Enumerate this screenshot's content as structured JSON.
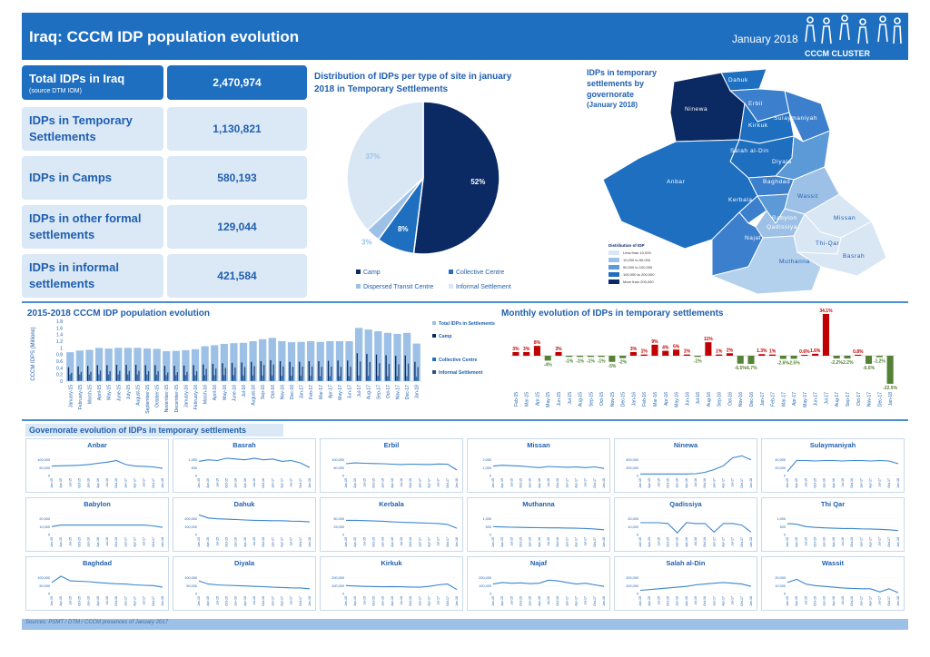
{
  "header": {
    "title": "Iraq: CCCM IDP population evolution",
    "date": "January 2018",
    "logo_text": "CCCM CLUSTER"
  },
  "kpis": [
    {
      "label": "Total IDPs in Iraq",
      "sub": "(source DTM IOM)",
      "value": "2,470,974"
    },
    {
      "label": "IDPs in Temporary Settlements",
      "sub": "",
      "value": "1,130,821"
    },
    {
      "label": "IDPs in Camps",
      "sub": "",
      "value": "580,193"
    },
    {
      "label": "IDPs in other formal settlements",
      "sub": "",
      "value": "129,044"
    },
    {
      "label": "IDPs in informal settlements",
      "sub": "",
      "value": "421,584"
    }
  ],
  "colors": {
    "brand": "#1f6fc0",
    "dark_navy": "#0b2a63",
    "mid_blue": "#1f6fc0",
    "light_blue": "#9dc1e6",
    "pale_blue": "#d9e6f4",
    "red": "#c00000",
    "green": "#548235"
  },
  "sections": {
    "pie_title_line1": "Distribution of IDPs per type of site in january",
    "pie_title_line2": "2018 in Temporary Settlements",
    "map_title_lines": [
      "IDPs in temporary",
      "settlements by",
      "governorate",
      "(January 2018)"
    ],
    "evo_title": "2015-2018 CCCM IDP population evolution",
    "monthly_title": "Monthly evolution of IDPs in temporary settlements",
    "gov_title": "Governorate evolution of IDPs in temporary settlements",
    "footer": "Sources: PSMT / DTM / CCCM presences of January 2017"
  },
  "map": {
    "legend_title": "Distribution of IDP",
    "legend_items": [
      "Less than 10,000",
      "10,000 to 50,000",
      "50,000 to 100,000",
      "100,000 to 200,000",
      "More than 200,000"
    ],
    "regions": [
      "Dahuk",
      "Ninewa",
      "Erbil",
      "Sulaymaniyah",
      "Kirkuk",
      "Salah al-Din",
      "Diyala",
      "Baghdad",
      "Anbar",
      "Wassit",
      "Kerbala",
      "Babylon",
      "Qadissiya",
      "Missan",
      "Thi-Qar",
      "Najaf",
      "Muthanna",
      "Basrah"
    ]
  },
  "chart_data": [
    {
      "type": "pie",
      "title": "Distribution of IDPs per type of site in january 2018 in Temporary Settlements",
      "categories": [
        "Camp",
        "Collective Centre",
        "Dispersed Transit Centre",
        "Informal Settlement"
      ],
      "values": [
        52,
        8,
        3,
        37
      ],
      "labels": [
        "52%",
        "8%",
        "3%",
        "37%"
      ],
      "legend": "bottom"
    },
    {
      "type": "bar",
      "title": "2015-2018 CCCM IDP population evolution",
      "ylabel": "CCCM IDPS (Millions)",
      "ylim": [
        0,
        1.8
      ],
      "yticks": [
        "0",
        "0.2",
        "0.4",
        "0.6",
        "0.8",
        "1",
        "1.2",
        "1.4",
        "1.6",
        "1.8"
      ],
      "categories": [
        "January-15",
        "February-15",
        "March-15",
        "April-15",
        "May-15",
        "June-15",
        "July-15",
        "August-15",
        "September-15",
        "October-15",
        "November-15",
        "December-15",
        "January-16",
        "February-16",
        "March-16",
        "April-16",
        "May-16",
        "June-16",
        "Jul-16",
        "August-16",
        "Sep-16",
        "Oct-16",
        "Nov-16",
        "Dec-16",
        "Jan-17",
        "Feb-17",
        "Mar-17",
        "Apr-17",
        "May-17",
        "Jun-17",
        "Jul-17",
        "Aug-17",
        "Sep-17",
        "Oct-17",
        "Nov-17",
        "Dec-17",
        "Jan-18"
      ],
      "series": [
        {
          "name": "Total IDPs in Settlements",
          "values": [
            0.87,
            0.92,
            0.94,
            1.0,
            0.98,
            1.0,
            1.0,
            1.0,
            0.98,
            0.97,
            0.9,
            0.91,
            0.93,
            0.96,
            1.05,
            1.08,
            1.12,
            1.14,
            1.15,
            1.2,
            1.26,
            1.3,
            1.2,
            1.17,
            1.18,
            1.2,
            1.18,
            1.2,
            1.2,
            1.2,
            1.6,
            1.55,
            1.5,
            1.45,
            1.42,
            1.45,
            1.13
          ]
        },
        {
          "name": "Camp",
          "values": [
            0.42,
            0.44,
            0.46,
            0.48,
            0.48,
            0.49,
            0.49,
            0.49,
            0.48,
            0.48,
            0.46,
            0.46,
            0.47,
            0.48,
            0.5,
            0.52,
            0.54,
            0.55,
            0.56,
            0.58,
            0.6,
            0.63,
            0.6,
            0.58,
            0.58,
            0.6,
            0.6,
            0.61,
            0.62,
            0.62,
            0.84,
            0.82,
            0.8,
            0.78,
            0.76,
            0.77,
            0.58
          ]
        },
        {
          "name": "Collective Centre",
          "values": [
            0.2,
            0.2,
            0.2,
            0.2,
            0.2,
            0.2,
            0.2,
            0.2,
            0.2,
            0.19,
            0.18,
            0.18,
            0.18,
            0.18,
            0.18,
            0.18,
            0.18,
            0.18,
            0.17,
            0.17,
            0.17,
            0.17,
            0.16,
            0.16,
            0.16,
            0.16,
            0.15,
            0.15,
            0.15,
            0.15,
            0.17,
            0.16,
            0.16,
            0.15,
            0.15,
            0.15,
            0.13
          ]
        },
        {
          "name": "Informal Settlement",
          "values": [
            0.25,
            0.28,
            0.28,
            0.32,
            0.3,
            0.31,
            0.31,
            0.31,
            0.3,
            0.3,
            0.26,
            0.27,
            0.28,
            0.3,
            0.37,
            0.38,
            0.4,
            0.41,
            0.42,
            0.45,
            0.49,
            0.5,
            0.44,
            0.43,
            0.44,
            0.44,
            0.43,
            0.44,
            0.43,
            0.43,
            0.59,
            0.57,
            0.54,
            0.52,
            0.51,
            0.53,
            0.42
          ]
        }
      ],
      "legend": "right"
    },
    {
      "type": "bar",
      "title": "Monthly evolution of IDPs in temporary settlements",
      "categories": [
        "Feb-15",
        "Mar-15",
        "Apr-15",
        "May-15",
        "Jun-15",
        "Jul-15",
        "Aug-15",
        "Sep-15",
        "Oct-15",
        "Nov-15",
        "Dec-15",
        "Jan-16",
        "Feb-16",
        "Mar-16",
        "Apr-16",
        "May-16",
        "Jun-16",
        "Jul-16",
        "Aug-16",
        "Sep-16",
        "Oct-16",
        "Nov-16",
        "Dec-16",
        "Jan-17",
        "Feb-17",
        "Mar-17",
        "Apr-17",
        "May-17",
        "Jun-17",
        "Jul-17",
        "Aug-17",
        "Sep-17",
        "Oct-17",
        "Nov-17",
        "Dec-17",
        "Jan-18"
      ],
      "values": [
        3,
        3,
        8,
        -4,
        3,
        -1,
        -1,
        -1,
        -1,
        -5,
        -2,
        3,
        1,
        9,
        4,
        5,
        1,
        -1,
        11,
        1,
        2,
        -6.5,
        -6.7,
        1.3,
        1,
        -2.6,
        -2.5,
        0.6,
        1.6,
        34.1,
        -2.2,
        -2.2,
        0.8,
        -6.6,
        -1.2,
        -22.9
      ],
      "labels": [
        "3%",
        "3%",
        "8%",
        "-4%",
        "3%",
        "-1%",
        "-1%",
        "-1%",
        "-1%",
        "-5%",
        "-2%",
        "3%",
        "1%",
        "9%",
        "4%",
        "5%",
        "1%",
        "-1%",
        "11%",
        "1%",
        "2%",
        "-6.5%",
        "-6.7%",
        "1.3%",
        "1%",
        "-2.6%",
        "-2.5%",
        "0.6%",
        "1.6%",
        "34.1%",
        "-2.2%",
        "-2.2%",
        "0.8%",
        "-6.6%",
        "-1.2%",
        "-22.9%"
      ],
      "colors_by_sign": {
        "positive": "#c00000",
        "negative": "#548235"
      }
    },
    {
      "type": "line",
      "title": "Governorate evolution of IDPs in temporary settlements",
      "x": [
        "Jan-15",
        "Apr-15",
        "Jul-15",
        "Oct-15",
        "Jan-16",
        "Apr-16",
        "Jul-16",
        "Oct-16",
        "Jan-17",
        "Apr-17",
        "Jul-17",
        "Oct-17",
        "Jan-18"
      ],
      "series": [
        {
          "name": "Anbar",
          "yticks": [
            "0",
            "50,000",
            "100,000"
          ],
          "ylim": [
            0,
            150000
          ],
          "values": [
            60000,
            62000,
            63000,
            65000,
            70000,
            78000,
            85000,
            95000,
            70000,
            60000,
            58000,
            55000,
            45000
          ]
        },
        {
          "name": "Basrah",
          "yticks": [
            "0",
            "500",
            "1,000"
          ],
          "ylim": [
            0,
            1500
          ],
          "values": [
            900,
            1000,
            950,
            1100,
            1050,
            1000,
            1100,
            1000,
            1050,
            900,
            950,
            800,
            500
          ]
        },
        {
          "name": "Erbil",
          "yticks": [
            "0",
            "50,000",
            "100,000"
          ],
          "ylim": [
            0,
            150000
          ],
          "values": [
            75000,
            80000,
            78000,
            76000,
            75000,
            72000,
            70000,
            72000,
            71000,
            70000,
            73000,
            72000,
            35000
          ]
        },
        {
          "name": "Missan",
          "yticks": [
            "0",
            "1,000",
            "2,000"
          ],
          "ylim": [
            0,
            3000
          ],
          "values": [
            1200,
            1300,
            1250,
            1200,
            1100,
            1000,
            1150,
            1100,
            1050,
            1100,
            1000,
            1100,
            900
          ]
        },
        {
          "name": "Ninewa",
          "yticks": [
            "0",
            "200,000",
            "400,000"
          ],
          "ylim": [
            0,
            600000
          ],
          "values": [
            40000,
            40000,
            40000,
            40000,
            40000,
            40000,
            45000,
            80000,
            150000,
            250000,
            450000,
            500000,
            400000
          ]
        },
        {
          "name": "Sulaymaniyah",
          "yticks": [
            "0",
            "20,000",
            "40,000"
          ],
          "ylim": [
            0,
            60000
          ],
          "values": [
            10000,
            38000,
            38000,
            37000,
            38000,
            38000,
            37000,
            38000,
            38000,
            37000,
            38000,
            37000,
            30000
          ]
        },
        {
          "name": "Babylon",
          "yticks": [
            "0",
            "10,000",
            "20,000"
          ],
          "ylim": [
            0,
            30000
          ],
          "values": [
            10000,
            12000,
            12000,
            12000,
            12000,
            12000,
            12000,
            12000,
            12000,
            12000,
            12000,
            11000,
            9000
          ]
        },
        {
          "name": "Dahuk",
          "yticks": [
            "0",
            "100,000",
            "200,000"
          ],
          "ylim": [
            0,
            300000
          ],
          "values": [
            250000,
            210000,
            200000,
            195000,
            190000,
            185000,
            180000,
            178000,
            175000,
            175000,
            170000,
            168000,
            160000
          ]
        },
        {
          "name": "Kerbala",
          "yticks": [
            "0",
            "25,000",
            "50,000"
          ],
          "ylim": [
            0,
            75000
          ],
          "values": [
            45000,
            45000,
            44000,
            43000,
            42000,
            40000,
            39000,
            38000,
            37000,
            36000,
            35000,
            32000,
            20000
          ]
        },
        {
          "name": "Muthanna",
          "yticks": [
            "0",
            "500",
            "1,000"
          ],
          "ylim": [
            0,
            1500
          ],
          "values": [
            500,
            480,
            460,
            450,
            440,
            430,
            420,
            420,
            410,
            400,
            380,
            350,
            300
          ]
        },
        {
          "name": "Qadissiya",
          "yticks": [
            "0",
            "10,000",
            "20,000"
          ],
          "ylim": [
            0,
            30000
          ],
          "values": [
            15000,
            15000,
            15000,
            14000,
            2000,
            15000,
            14000,
            14000,
            3000,
            14000,
            14000,
            12000,
            3000
          ]
        },
        {
          "name": "Thi Qar",
          "yticks": [
            "0",
            "500",
            "1,000"
          ],
          "ylim": [
            0,
            1500
          ],
          "values": [
            700,
            650,
            500,
            450,
            420,
            400,
            380,
            380,
            360,
            350,
            330,
            300,
            250
          ]
        },
        {
          "name": "Baghdad",
          "yticks": [
            "0",
            "50,000",
            "100,000"
          ],
          "ylim": [
            0,
            150000
          ],
          "values": [
            70000,
            110000,
            80000,
            78000,
            75000,
            70000,
            65000,
            62000,
            60000,
            55000,
            52000,
            50000,
            40000
          ]
        },
        {
          "name": "Diyala",
          "yticks": [
            "0",
            "50,000",
            "100,000"
          ],
          "ylim": [
            0,
            150000
          ],
          "values": [
            80000,
            60000,
            55000,
            52000,
            50000,
            48000,
            45000,
            43000,
            40000,
            38000,
            36000,
            35000,
            30000
          ]
        },
        {
          "name": "Kirkuk",
          "yticks": [
            "0",
            "100,000",
            "200,000"
          ],
          "ylim": [
            0,
            300000
          ],
          "values": [
            100000,
            95000,
            90000,
            88000,
            85000,
            88000,
            85000,
            82000,
            80000,
            90000,
            110000,
            120000,
            50000
          ]
        },
        {
          "name": "Najaf",
          "yticks": [
            "0",
            "100,000",
            "200,000"
          ],
          "ylim": [
            0,
            300000
          ],
          "values": [
            120000,
            140000,
            130000,
            135000,
            125000,
            130000,
            170000,
            160000,
            140000,
            120000,
            130000,
            110000,
            90000
          ]
        },
        {
          "name": "Salah al-Din",
          "yticks": [
            "0",
            "100,000",
            "200,000"
          ],
          "ylim": [
            0,
            300000
          ],
          "values": [
            40000,
            50000,
            60000,
            70000,
            80000,
            90000,
            110000,
            120000,
            130000,
            140000,
            130000,
            120000,
            90000
          ]
        },
        {
          "name": "Wassit",
          "yticks": [
            "0",
            "10,000",
            "20,000"
          ],
          "ylim": [
            0,
            30000
          ],
          "values": [
            14000,
            18000,
            12000,
            10000,
            9000,
            8000,
            7000,
            6500,
            6000,
            6000,
            2000,
            6000,
            1000
          ]
        }
      ]
    }
  ]
}
